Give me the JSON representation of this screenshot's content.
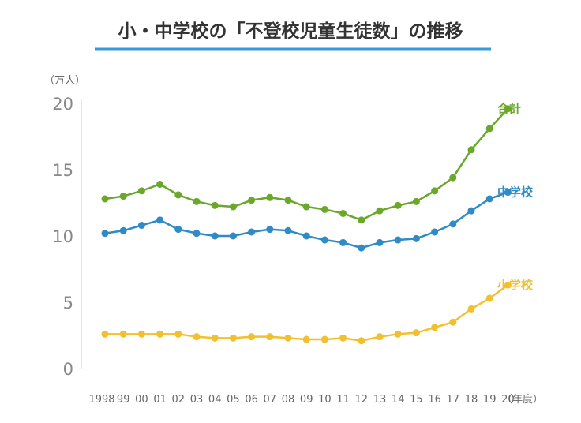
{
  "chart_data": {
    "type": "line",
    "title": "小・中学校の「不登校児童生徒数」の推移",
    "ylabel": "（万人）",
    "xlabel": "（年度）",
    "ylim": [
      0,
      20
    ],
    "yticks": [
      "0",
      "5",
      "10",
      "15",
      "20"
    ],
    "grid": false,
    "categories": [
      "1998",
      "99",
      "00",
      "01",
      "02",
      "03",
      "04",
      "05",
      "06",
      "07",
      "08",
      "09",
      "10",
      "11",
      "12",
      "13",
      "14",
      "15",
      "16",
      "17",
      "18",
      "19",
      "20"
    ],
    "series": [
      {
        "name": "合計",
        "color": "#6aa82a",
        "values": [
          12.8,
          13.0,
          13.4,
          13.9,
          13.1,
          12.6,
          12.3,
          12.2,
          12.7,
          12.9,
          12.7,
          12.2,
          12.0,
          11.7,
          11.2,
          11.9,
          12.3,
          12.6,
          13.4,
          14.4,
          16.5,
          18.1,
          19.6
        ]
      },
      {
        "name": "中学校",
        "color": "#2f8ac6",
        "values": [
          10.2,
          10.4,
          10.8,
          11.2,
          10.5,
          10.2,
          10.0,
          10.0,
          10.3,
          10.5,
          10.4,
          10.0,
          9.7,
          9.5,
          9.1,
          9.5,
          9.7,
          9.8,
          10.3,
          10.9,
          11.9,
          12.8,
          13.3
        ]
      },
      {
        "name": "小学校",
        "color": "#f2c02e",
        "values": [
          2.6,
          2.6,
          2.6,
          2.6,
          2.6,
          2.4,
          2.3,
          2.3,
          2.4,
          2.4,
          2.3,
          2.2,
          2.2,
          2.3,
          2.1,
          2.4,
          2.6,
          2.7,
          3.1,
          3.5,
          4.5,
          5.3,
          6.3
        ]
      }
    ]
  }
}
